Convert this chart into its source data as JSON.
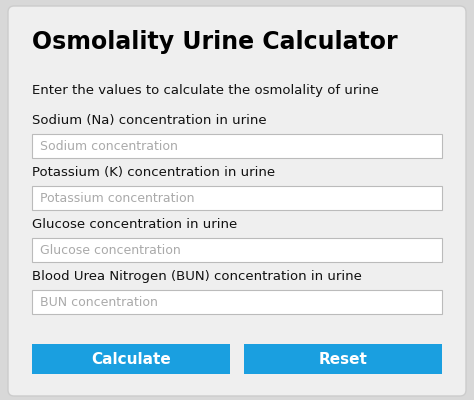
{
  "title": "Osmolality Urine Calculator",
  "subtitle": "Enter the values to calculate the osmolality of urine",
  "labels": [
    "Sodium (Na) concentration in urine",
    "Potassium (K) concentration in urine",
    "Glucose concentration in urine",
    "Blood Urea Nitrogen (BUN) concentration in urine"
  ],
  "placeholders": [
    "Sodium concentration",
    "Potassium concentration",
    "Glucose concentration",
    "BUN concentration"
  ],
  "buttons": [
    "Calculate",
    "Reset"
  ],
  "bg_color": "#d8d8d8",
  "card_color": "#efefef",
  "input_bg": "#ffffff",
  "input_border": "#bbbbbb",
  "placeholder_color": "#aaaaaa",
  "label_color": "#111111",
  "title_color": "#000000",
  "subtitle_color": "#111111",
  "button_color": "#1a9fe0",
  "button_text_color": "#ffffff",
  "title_fontsize": 17,
  "subtitle_fontsize": 9.5,
  "label_fontsize": 9.5,
  "placeholder_fontsize": 9.0,
  "button_fontsize": 11
}
